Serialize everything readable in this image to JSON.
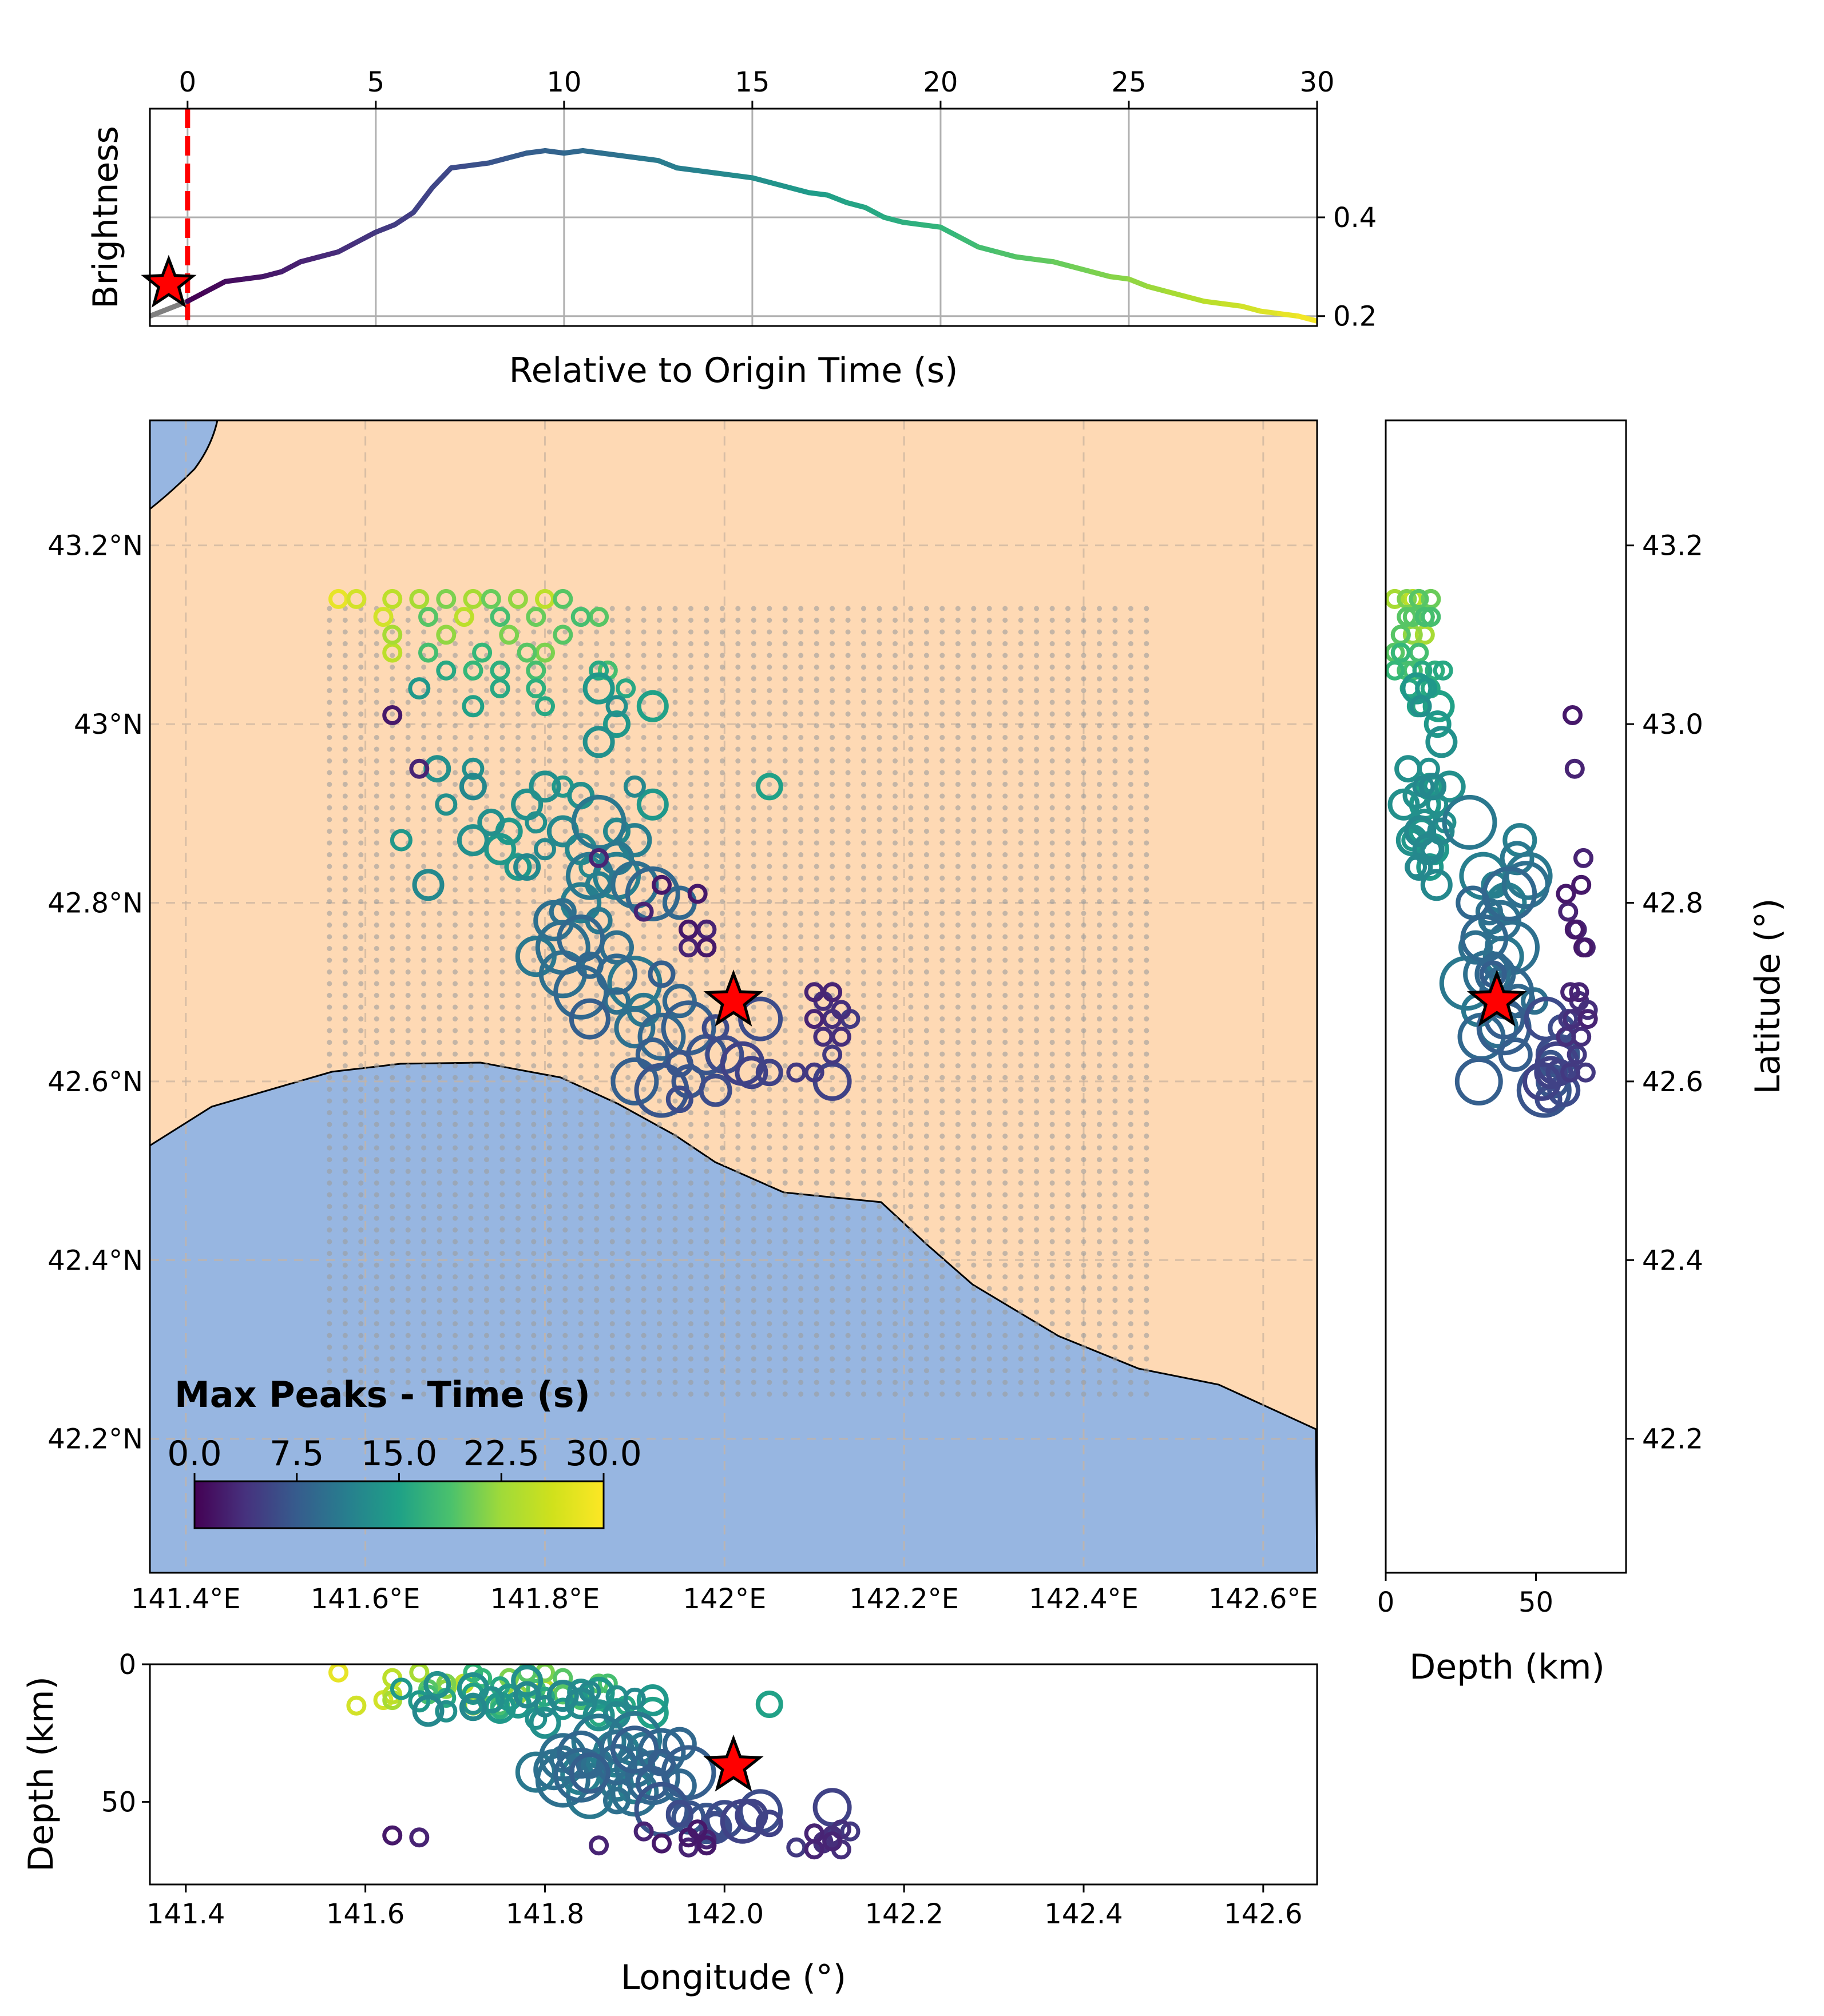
{
  "chart_data": [
    {
      "id": "brightness",
      "type": "line",
      "xlabel": "Relative to Origin Time (s)",
      "ylabel": "Brightness",
      "xlim": [
        -1,
        30
      ],
      "ylim": [
        0.18,
        0.62
      ],
      "x_ticks": [
        "0",
        "5",
        "10",
        "15",
        "20",
        "25",
        "30"
      ],
      "y_ticks": [
        "0.2",
        "0.4"
      ],
      "x_tick_position": "top",
      "y_tick_position": "right",
      "grid": true,
      "origin_line_x": 0,
      "pre_origin_color": "#808080",
      "colormap": "viridis",
      "series": [
        {
          "x": [
            -1,
            -0.5,
            0,
            0.5,
            1,
            1.5,
            2,
            2.5,
            3,
            3.5,
            4,
            4.5,
            5,
            5.5,
            6,
            6.5,
            7,
            7.5,
            8,
            8.5,
            9,
            9.5,
            10,
            10.5,
            11,
            11.5,
            12,
            12.5,
            13,
            13.5,
            14,
            14.5,
            15,
            15.5,
            16,
            16.5,
            17,
            17.5,
            18,
            18.5,
            19,
            19.5,
            20,
            20.5,
            21,
            21.5,
            22,
            22.5,
            23,
            23.5,
            24,
            24.5,
            25,
            25.5,
            26,
            26.5,
            27,
            27.5,
            28,
            28.5,
            29,
            29.5,
            30
          ],
          "y": [
            0.2,
            0.215,
            0.23,
            0.25,
            0.27,
            0.275,
            0.28,
            0.29,
            0.31,
            0.32,
            0.33,
            0.35,
            0.37,
            0.385,
            0.41,
            0.46,
            0.5,
            0.505,
            0.51,
            0.52,
            0.53,
            0.535,
            0.53,
            0.535,
            0.53,
            0.525,
            0.52,
            0.515,
            0.5,
            0.495,
            0.49,
            0.485,
            0.48,
            0.47,
            0.46,
            0.45,
            0.445,
            0.43,
            0.42,
            0.4,
            0.39,
            0.385,
            0.38,
            0.36,
            0.34,
            0.33,
            0.32,
            0.315,
            0.31,
            0.3,
            0.29,
            0.28,
            0.275,
            0.26,
            0.25,
            0.24,
            0.23,
            0.225,
            0.22,
            0.21,
            0.205,
            0.2,
            0.19
          ]
        }
      ],
      "star": {
        "x": -0.5,
        "y": 0.265
      }
    },
    {
      "id": "map",
      "type": "scatter",
      "colorbar_title": "Max Peaks - Time (s)",
      "colorbar_ticks": [
        "0.0",
        "7.5",
        "15.0",
        "22.5",
        "30.0"
      ],
      "colorbar_range": [
        0,
        30
      ],
      "colormap": "viridis",
      "xlim": [
        141.36,
        142.66
      ],
      "ylim": [
        42.05,
        43.34
      ],
      "x_ticks": [
        "141.4°E",
        "141.6°E",
        "141.8°E",
        "142°E",
        "142.2°E",
        "142.4°E",
        "142.6°E"
      ],
      "y_ticks": [
        "42.2°N",
        "42.4°N",
        "42.6°N",
        "42.8°N",
        "43°N",
        "43.2°N"
      ],
      "land_color": "#fed9b4",
      "sea_color": "#97b6e1",
      "grid_lon": [
        141.56,
        142.47
      ],
      "grid_lat": [
        42.25,
        43.14
      ],
      "star": {
        "lon": 142.01,
        "lat": 42.69
      },
      "points": [
        {
          "lon": 141.57,
          "lat": 43.14,
          "t": 29
        },
        {
          "lon": 141.59,
          "lat": 43.14,
          "t": 28
        },
        {
          "lon": 141.63,
          "lat": 43.14,
          "t": 27
        },
        {
          "lon": 141.66,
          "lat": 43.14,
          "t": 26
        },
        {
          "lon": 141.69,
          "lat": 43.14,
          "t": 24
        },
        {
          "lon": 141.72,
          "lat": 43.14,
          "t": 26
        },
        {
          "lon": 141.74,
          "lat": 43.14,
          "t": 23
        },
        {
          "lon": 141.77,
          "lat": 43.14,
          "t": 25
        },
        {
          "lon": 141.8,
          "lat": 43.14,
          "t": 27
        },
        {
          "lon": 141.82,
          "lat": 43.14,
          "t": 22
        },
        {
          "lon": 141.62,
          "lat": 43.12,
          "t": 28
        },
        {
          "lon": 141.67,
          "lat": 43.12,
          "t": 22
        },
        {
          "lon": 141.71,
          "lat": 43.12,
          "t": 27
        },
        {
          "lon": 141.75,
          "lat": 43.12,
          "t": 21
        },
        {
          "lon": 141.79,
          "lat": 43.12,
          "t": 23
        },
        {
          "lon": 141.84,
          "lat": 43.12,
          "t": 21
        },
        {
          "lon": 141.86,
          "lat": 43.12,
          "t": 22
        },
        {
          "lon": 141.63,
          "lat": 43.1,
          "t": 26
        },
        {
          "lon": 141.69,
          "lat": 43.1,
          "t": 25
        },
        {
          "lon": 141.76,
          "lat": 43.1,
          "t": 24
        },
        {
          "lon": 141.82,
          "lat": 43.1,
          "t": 22
        },
        {
          "lon": 141.63,
          "lat": 43.08,
          "t": 27
        },
        {
          "lon": 141.67,
          "lat": 43.08,
          "t": 21
        },
        {
          "lon": 141.73,
          "lat": 43.08,
          "t": 20
        },
        {
          "lon": 141.78,
          "lat": 43.08,
          "t": 22
        },
        {
          "lon": 141.8,
          "lat": 43.08,
          "t": 24
        },
        {
          "lon": 141.69,
          "lat": 43.06,
          "t": 18
        },
        {
          "lon": 141.72,
          "lat": 43.06,
          "t": 20
        },
        {
          "lon": 141.75,
          "lat": 43.06,
          "t": 19
        },
        {
          "lon": 141.79,
          "lat": 43.06,
          "t": 21
        },
        {
          "lon": 141.86,
          "lat": 43.06,
          "t": 18
        },
        {
          "lon": 141.87,
          "lat": 43.06,
          "t": 21
        },
        {
          "lon": 141.66,
          "lat": 43.04,
          "t": 16
        },
        {
          "lon": 141.75,
          "lat": 43.04,
          "t": 18
        },
        {
          "lon": 141.79,
          "lat": 43.04,
          "t": 19
        },
        {
          "lon": 141.86,
          "lat": 43.04,
          "t": 16
        },
        {
          "lon": 141.89,
          "lat": 43.04,
          "t": 18
        },
        {
          "lon": 141.72,
          "lat": 43.02,
          "t": 17
        },
        {
          "lon": 141.8,
          "lat": 43.02,
          "t": 18
        },
        {
          "lon": 141.88,
          "lat": 43.02,
          "t": 15
        },
        {
          "lon": 141.92,
          "lat": 43.02,
          "t": 17
        },
        {
          "lon": 141.63,
          "lat": 43.01,
          "t": 2
        },
        {
          "lon": 141.88,
          "lat": 43.0,
          "t": 16
        },
        {
          "lon": 141.86,
          "lat": 42.98,
          "t": 15
        },
        {
          "lon": 141.66,
          "lat": 42.95,
          "t": 3
        },
        {
          "lon": 141.68,
          "lat": 42.95,
          "t": 15
        },
        {
          "lon": 141.72,
          "lat": 42.95,
          "t": 15
        },
        {
          "lon": 141.72,
          "lat": 42.93,
          "t": 14
        },
        {
          "lon": 141.8,
          "lat": 42.93,
          "t": 15
        },
        {
          "lon": 141.82,
          "lat": 42.93,
          "t": 16
        },
        {
          "lon": 141.84,
          "lat": 42.92,
          "t": 15
        },
        {
          "lon": 141.9,
          "lat": 42.93,
          "t": 14
        },
        {
          "lon": 141.92,
          "lat": 42.91,
          "t": 16
        },
        {
          "lon": 142.05,
          "lat": 42.93,
          "t": 17
        },
        {
          "lon": 141.69,
          "lat": 42.91,
          "t": 15
        },
        {
          "lon": 141.78,
          "lat": 42.91,
          "t": 15
        },
        {
          "lon": 141.74,
          "lat": 42.89,
          "t": 15
        },
        {
          "lon": 141.76,
          "lat": 42.88,
          "t": 16
        },
        {
          "lon": 141.79,
          "lat": 42.89,
          "t": 15
        },
        {
          "lon": 141.82,
          "lat": 42.88,
          "t": 14
        },
        {
          "lon": 141.86,
          "lat": 42.89,
          "t": 12
        },
        {
          "lon": 141.88,
          "lat": 42.88,
          "t": 14
        },
        {
          "lon": 141.64,
          "lat": 42.87,
          "t": 16
        },
        {
          "lon": 141.72,
          "lat": 42.87,
          "t": 15
        },
        {
          "lon": 141.75,
          "lat": 42.86,
          "t": 16
        },
        {
          "lon": 141.8,
          "lat": 42.86,
          "t": 14
        },
        {
          "lon": 141.84,
          "lat": 42.86,
          "t": 14
        },
        {
          "lon": 141.86,
          "lat": 42.85,
          "t": 3
        },
        {
          "lon": 141.88,
          "lat": 42.85,
          "t": 12
        },
        {
          "lon": 141.9,
          "lat": 42.87,
          "t": 13
        },
        {
          "lon": 141.77,
          "lat": 42.84,
          "t": 16
        },
        {
          "lon": 141.78,
          "lat": 42.84,
          "t": 14
        },
        {
          "lon": 141.85,
          "lat": 42.84,
          "t": 14
        },
        {
          "lon": 141.88,
          "lat": 42.83,
          "t": 13
        },
        {
          "lon": 141.85,
          "lat": 42.83,
          "t": 12
        },
        {
          "lon": 141.86,
          "lat": 42.82,
          "t": 13
        },
        {
          "lon": 141.9,
          "lat": 42.82,
          "t": 11
        },
        {
          "lon": 141.92,
          "lat": 42.81,
          "t": 10
        },
        {
          "lon": 141.93,
          "lat": 42.82,
          "t": 2
        },
        {
          "lon": 141.84,
          "lat": 42.8,
          "t": 13
        },
        {
          "lon": 141.82,
          "lat": 42.79,
          "t": 11
        },
        {
          "lon": 141.95,
          "lat": 42.8,
          "t": 10
        },
        {
          "lon": 141.97,
          "lat": 42.81,
          "t": 2
        },
        {
          "lon": 141.67,
          "lat": 42.82,
          "t": 14
        },
        {
          "lon": 141.91,
          "lat": 42.79,
          "t": 3
        },
        {
          "lon": 141.81,
          "lat": 42.78,
          "t": 11
        },
        {
          "lon": 141.86,
          "lat": 42.78,
          "t": 12
        },
        {
          "lon": 141.84,
          "lat": 42.76,
          "t": 10
        },
        {
          "lon": 141.82,
          "lat": 42.75,
          "t": 11
        },
        {
          "lon": 141.79,
          "lat": 42.74,
          "t": 12
        },
        {
          "lon": 141.88,
          "lat": 42.75,
          "t": 11
        },
        {
          "lon": 141.85,
          "lat": 42.73,
          "t": 10
        },
        {
          "lon": 141.96,
          "lat": 42.77,
          "t": 2
        },
        {
          "lon": 141.98,
          "lat": 42.77,
          "t": 3
        },
        {
          "lon": 141.96,
          "lat": 42.75,
          "t": 3
        },
        {
          "lon": 141.98,
          "lat": 42.75,
          "t": 2
        },
        {
          "lon": 141.82,
          "lat": 42.72,
          "t": 11
        },
        {
          "lon": 141.88,
          "lat": 42.72,
          "t": 10
        },
        {
          "lon": 141.9,
          "lat": 42.71,
          "t": 12
        },
        {
          "lon": 141.93,
          "lat": 42.72,
          "t": 9
        },
        {
          "lon": 141.84,
          "lat": 42.7,
          "t": 10
        },
        {
          "lon": 141.88,
          "lat": 42.69,
          "t": 11
        },
        {
          "lon": 141.91,
          "lat": 42.68,
          "t": 12
        },
        {
          "lon": 141.95,
          "lat": 42.69,
          "t": 10
        },
        {
          "lon": 141.85,
          "lat": 42.67,
          "t": 9
        },
        {
          "lon": 141.9,
          "lat": 42.66,
          "t": 11
        },
        {
          "lon": 141.93,
          "lat": 42.65,
          "t": 10
        },
        {
          "lon": 141.96,
          "lat": 42.66,
          "t": 9
        },
        {
          "lon": 141.99,
          "lat": 42.66,
          "t": 7
        },
        {
          "lon": 142.04,
          "lat": 42.67,
          "t": 7
        },
        {
          "lon": 141.92,
          "lat": 42.63,
          "t": 9
        },
        {
          "lon": 141.95,
          "lat": 42.62,
          "t": 8
        },
        {
          "lon": 141.98,
          "lat": 42.63,
          "t": 8
        },
        {
          "lon": 142.0,
          "lat": 42.63,
          "t": 7
        },
        {
          "lon": 142.02,
          "lat": 42.62,
          "t": 6
        },
        {
          "lon": 141.9,
          "lat": 42.6,
          "t": 9
        },
        {
          "lon": 141.93,
          "lat": 42.59,
          "t": 8
        },
        {
          "lon": 141.96,
          "lat": 42.6,
          "t": 8
        },
        {
          "lon": 141.99,
          "lat": 42.59,
          "t": 7
        },
        {
          "lon": 141.95,
          "lat": 42.58,
          "t": 7
        },
        {
          "lon": 142.1,
          "lat": 42.7,
          "t": 3
        },
        {
          "lon": 142.12,
          "lat": 42.7,
          "t": 3
        },
        {
          "lon": 142.11,
          "lat": 42.69,
          "t": 4
        },
        {
          "lon": 142.13,
          "lat": 42.68,
          "t": 4
        },
        {
          "lon": 142.1,
          "lat": 42.67,
          "t": 3
        },
        {
          "lon": 142.12,
          "lat": 42.67,
          "t": 4
        },
        {
          "lon": 142.14,
          "lat": 42.67,
          "t": 5
        },
        {
          "lon": 142.11,
          "lat": 42.65,
          "t": 4
        },
        {
          "lon": 142.13,
          "lat": 42.65,
          "t": 4
        },
        {
          "lon": 142.12,
          "lat": 42.63,
          "t": 5
        },
        {
          "lon": 142.08,
          "lat": 42.61,
          "t": 5
        },
        {
          "lon": 142.1,
          "lat": 42.61,
          "t": 5
        },
        {
          "lon": 142.12,
          "lat": 42.6,
          "t": 6
        },
        {
          "lon": 142.03,
          "lat": 42.61,
          "t": 6
        },
        {
          "lon": 142.05,
          "lat": 42.61,
          "t": 6
        }
      ]
    },
    {
      "id": "depth_latitude",
      "type": "scatter",
      "xlabel": "Depth (km)",
      "ylabel": "Latitude (°)",
      "xlim": [
        0,
        80
      ],
      "ylim": [
        42.05,
        43.34
      ],
      "x_ticks": [
        "0",
        "50"
      ],
      "y_ticks": [
        "42.2",
        "42.4",
        "42.6",
        "42.8",
        "43.0",
        "43.2"
      ],
      "star": {
        "depth": 37,
        "lat": 42.69
      }
    },
    {
      "id": "longitude_depth",
      "type": "scatter",
      "xlabel": "Longitude (°)",
      "ylabel": "Depth (km)",
      "xlim": [
        141.36,
        142.66
      ],
      "ylim": [
        80,
        0
      ],
      "x_ticks": [
        "141.4",
        "141.6",
        "141.8",
        "142.0",
        "142.2",
        "142.4",
        "142.6"
      ],
      "y_ticks": [
        "0",
        "50"
      ],
      "star": {
        "lon": 142.01,
        "depth": 37
      }
    }
  ]
}
